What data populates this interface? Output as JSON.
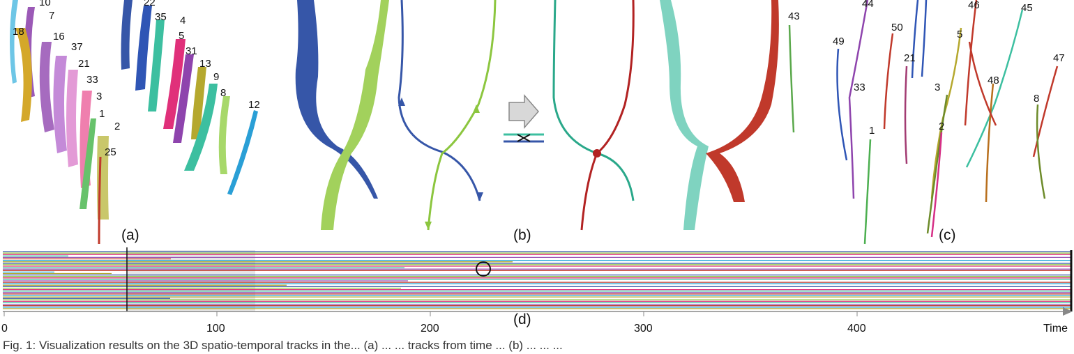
{
  "panels": {
    "a": {
      "label": "(a)",
      "track_ids": [
        "10",
        "7",
        "18",
        "16",
        "37",
        "21",
        "33",
        "3",
        "1",
        "2",
        "25",
        "22",
        "35",
        "4",
        "5",
        "31",
        "13",
        "9",
        "8",
        "12"
      ]
    },
    "b": {
      "label": "(b)"
    },
    "c": {
      "label": "(c)",
      "track_ids": [
        "43",
        "44",
        "49",
        "33",
        "50",
        "21",
        "1",
        "46",
        "45",
        "5",
        "3",
        "2",
        "48",
        "47",
        "8"
      ]
    },
    "d": {
      "label": "(d)"
    }
  },
  "timeline": {
    "x_ticks": [
      "0",
      "100",
      "200",
      "300",
      "400"
    ],
    "x_label": "Time",
    "xlim": [
      0,
      500
    ],
    "highlight_range": [
      59,
      118
    ],
    "marker_time": 59,
    "circle_time": 225
  },
  "caption": "Fig. 1: Visualization results on the 3D spatio-temporal tracks in the... (a) ... ... tracks from time ... (b) ... ... ...",
  "colors": {
    "blue": "#3656a8",
    "green": "#8cc63f",
    "teal": "#3cbfa0",
    "red": "#c0392b",
    "pink": "#e0307a",
    "purple": "#9b59b6",
    "olive": "#b5a82e",
    "cyan": "#27a9d9"
  }
}
